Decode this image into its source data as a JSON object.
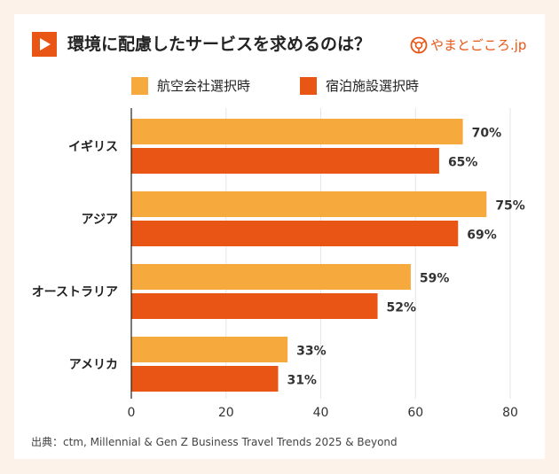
{
  "title": "環境に配慮したサービスを求めるのは？",
  "logo_text": "やまとごころ.jp",
  "source": "出典：ctm, Millennial & Gen Z Business Travel Trends 2025 & Beyond",
  "chart_data": {
    "type": "bar",
    "orientation": "horizontal",
    "categories": [
      "イギリス",
      "アジア",
      "オーストラリア",
      "アメリカ"
    ],
    "series": [
      {
        "name": "航空会社選択時",
        "color": "#f6aa3d",
        "values": [
          70,
          75,
          59,
          33
        ]
      },
      {
        "name": "宿泊施設選択時",
        "color": "#e95514",
        "values": [
          65,
          69,
          52,
          31
        ]
      }
    ],
    "xlim": [
      0,
      80
    ],
    "xticks": [
      0,
      20,
      40,
      60,
      80
    ],
    "value_suffix": "%",
    "grid": true,
    "legend": "top"
  }
}
